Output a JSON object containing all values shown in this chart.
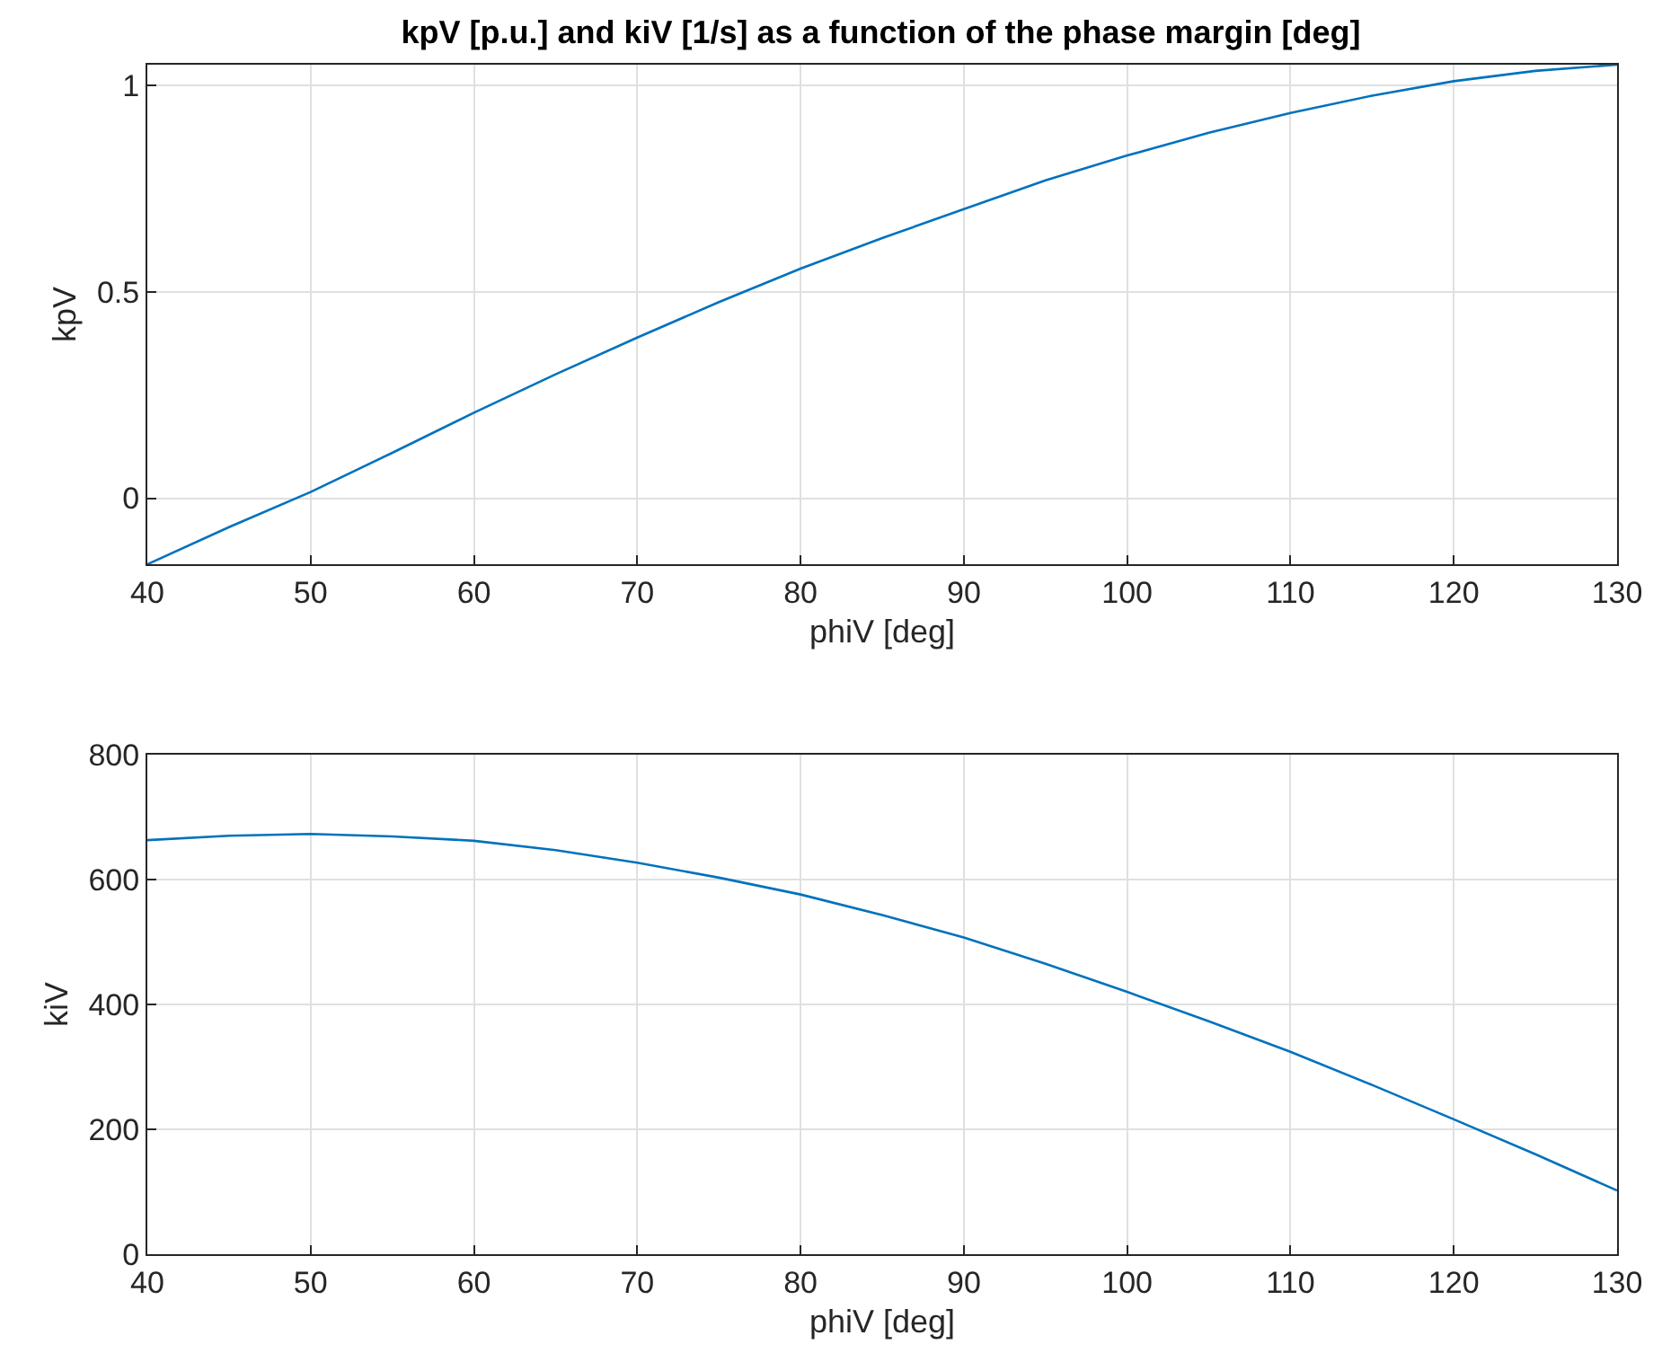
{
  "chart_data": [
    {
      "type": "line",
      "title": "kpV [p.u.] and kiV [1/s] as a function of the phase margin [deg]",
      "xlabel": "phiV [deg]",
      "ylabel": "kpV",
      "x": [
        40,
        45,
        50,
        55,
        60,
        65,
        70,
        75,
        80,
        85,
        90,
        95,
        100,
        105,
        110,
        115,
        120,
        125,
        130
      ],
      "series": [
        {
          "color": "#0072bd",
          "values": [
            -0.16,
            -0.07,
            0.015,
            0.11,
            0.207,
            0.3,
            0.389,
            0.475,
            0.556,
            0.63,
            0.7,
            0.77,
            0.83,
            0.885,
            0.933,
            0.975,
            1.01,
            1.035,
            1.05
          ]
        }
      ],
      "xlim": [
        40,
        130
      ],
      "xticks": [
        40,
        50,
        60,
        70,
        80,
        90,
        100,
        110,
        120,
        130
      ],
      "ylim": [
        -0.16,
        1.05
      ],
      "yticks": [
        0,
        0.5,
        1
      ],
      "grid": true
    },
    {
      "type": "line",
      "xlabel": "phiV [deg]",
      "ylabel": "kiV",
      "x": [
        40,
        45,
        50,
        55,
        60,
        65,
        70,
        75,
        80,
        85,
        90,
        95,
        100,
        105,
        110,
        115,
        120,
        125,
        130
      ],
      "series": [
        {
          "color": "#0072bd",
          "values": [
            663,
            670,
            673,
            669,
            662,
            647,
            627,
            603,
            576,
            543,
            507,
            465,
            420,
            373,
            324,
            271,
            216,
            160,
            102
          ]
        }
      ],
      "xlim": [
        40,
        130
      ],
      "xticks": [
        40,
        50,
        60,
        70,
        80,
        90,
        100,
        110,
        120,
        130
      ],
      "ylim": [
        0,
        800
      ],
      "yticks": [
        0,
        200,
        400,
        600,
        800
      ],
      "grid": true
    }
  ]
}
